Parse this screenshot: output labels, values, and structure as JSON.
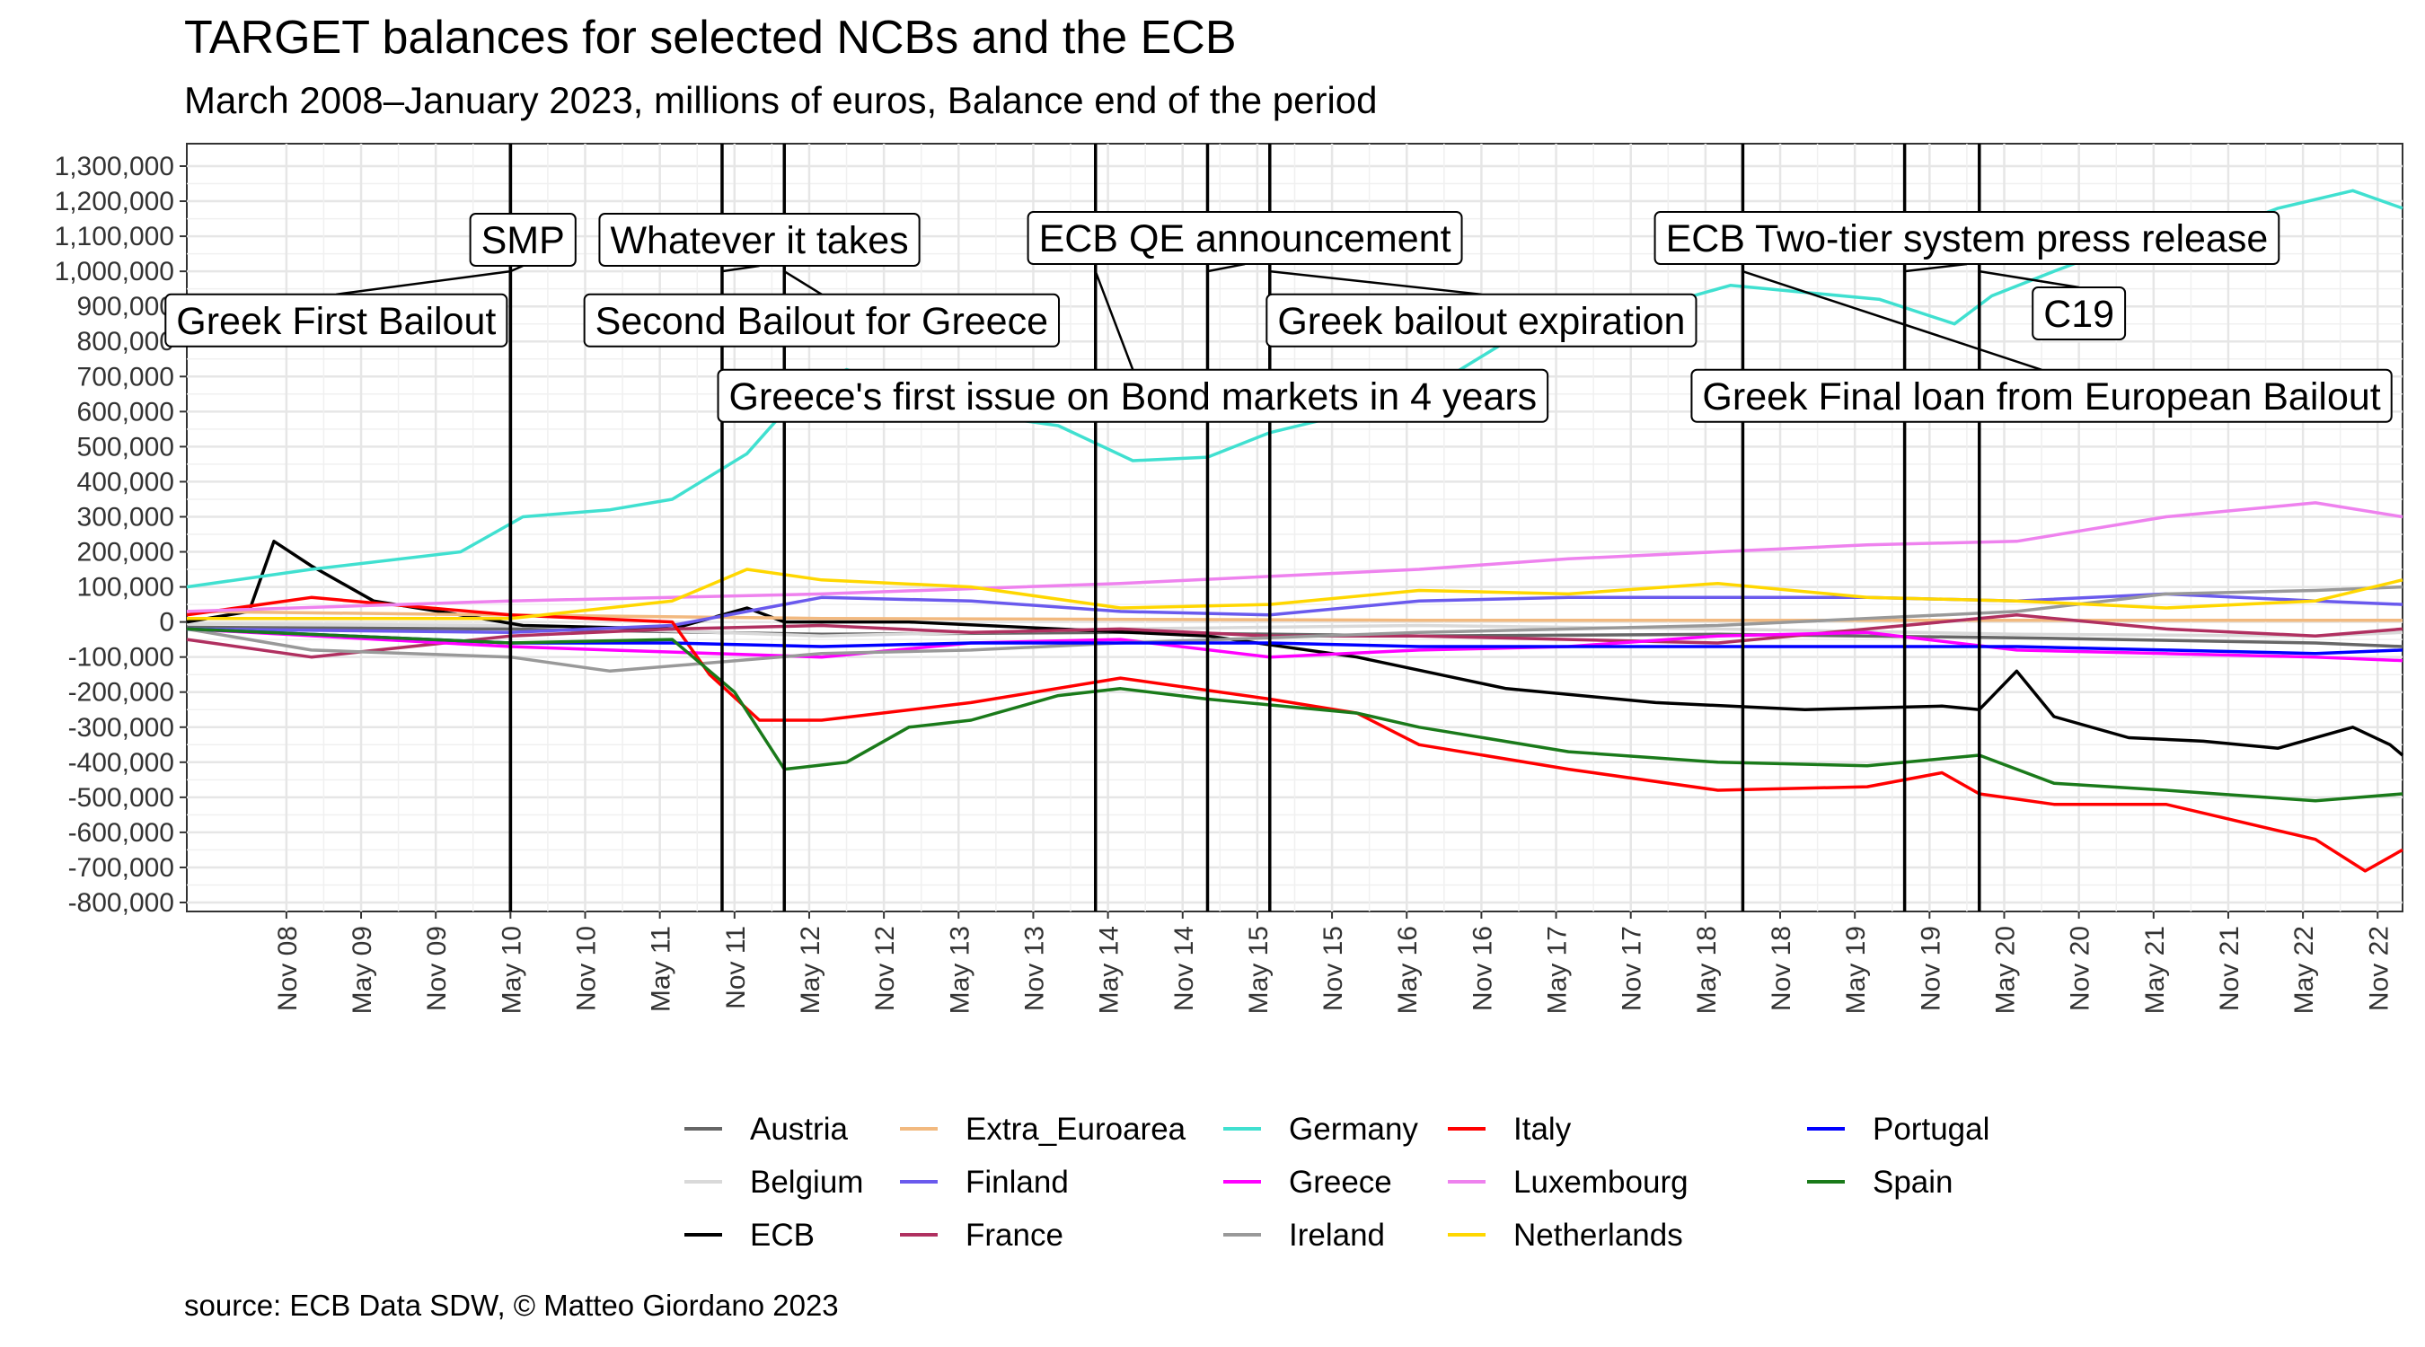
{
  "chart_data": {
    "type": "line",
    "title": "TARGET balances for selected NCBs and the ECB",
    "subtitle": "March 2008–January 2023, millions of euros, Balance end of the period",
    "caption": "source: ECB Data SDW, © Matteo Giordano 2023",
    "xlabel": "",
    "ylabel": "",
    "x_range": [
      "2008-03",
      "2023-01"
    ],
    "ylim": [
      -800000,
      1300000
    ],
    "y_ticks": [
      1300000,
      1200000,
      1100000,
      1000000,
      900000,
      800000,
      700000,
      600000,
      500000,
      400000,
      300000,
      200000,
      100000,
      0,
      -100000,
      -200000,
      -300000,
      -400000,
      -500000,
      -600000,
      -700000,
      -800000
    ],
    "y_tick_labels": [
      "1,300,000",
      "1,200,000",
      "1,100,000",
      "1,000,000",
      "900,000",
      "800,000",
      "700,000",
      "600,000",
      "500,000",
      "400,000",
      "300,000",
      "200,000",
      "100,000",
      "0",
      "-100,000",
      "-200,000",
      "-300,000",
      "-400,000",
      "-500,000",
      "-600,000",
      "-700,000",
      "-800,000"
    ],
    "x_ticks": [
      {
        "date": "2008-11",
        "label": "Nov 08"
      },
      {
        "date": "2009-05",
        "label": "May 09"
      },
      {
        "date": "2009-11",
        "label": "Nov 09"
      },
      {
        "date": "2010-05",
        "label": "May 10"
      },
      {
        "date": "2010-11",
        "label": "Nov 10"
      },
      {
        "date": "2011-05",
        "label": "May 11"
      },
      {
        "date": "2011-11",
        "label": "Nov 11"
      },
      {
        "date": "2012-05",
        "label": "May 12"
      },
      {
        "date": "2012-11",
        "label": "Nov 12"
      },
      {
        "date": "2013-05",
        "label": "May 13"
      },
      {
        "date": "2013-11",
        "label": "Nov 13"
      },
      {
        "date": "2014-05",
        "label": "May 14"
      },
      {
        "date": "2014-11",
        "label": "Nov 14"
      },
      {
        "date": "2015-05",
        "label": "May 15"
      },
      {
        "date": "2015-11",
        "label": "Nov 15"
      },
      {
        "date": "2016-05",
        "label": "May 16"
      },
      {
        "date": "2016-11",
        "label": "Nov 16"
      },
      {
        "date": "2017-05",
        "label": "May 17"
      },
      {
        "date": "2017-11",
        "label": "Nov 17"
      },
      {
        "date": "2018-05",
        "label": "May 18"
      },
      {
        "date": "2018-11",
        "label": "Nov 18"
      },
      {
        "date": "2019-05",
        "label": "May 19"
      },
      {
        "date": "2019-11",
        "label": "Nov 19"
      },
      {
        "date": "2020-05",
        "label": "May 20"
      },
      {
        "date": "2020-11",
        "label": "Nov 20"
      },
      {
        "date": "2021-05",
        "label": "May 21"
      },
      {
        "date": "2021-11",
        "label": "Nov 21"
      },
      {
        "date": "2022-05",
        "label": "May 22"
      },
      {
        "date": "2022-11",
        "label": "Nov 22"
      }
    ],
    "events": [
      {
        "date": "2010-05",
        "label": "Greek First Bailout",
        "label_date": "2009-03",
        "label_y": 860000
      },
      {
        "date": "2010-05",
        "label": "SMP",
        "label_date": "2010-06",
        "label_y": 1090000
      },
      {
        "date": "2011-10",
        "label": "Whatever it takes",
        "label_date": "2012-01",
        "label_y": 1090000
      },
      {
        "date": "2012-03",
        "label": "Second Bailout for Greece",
        "label_date": "2012-06",
        "label_y": 860000
      },
      {
        "date": "2014-04",
        "label": "Greece's first issue on Bond markets in 4 years",
        "label_date": "2014-07",
        "label_y": 645000
      },
      {
        "date": "2015-01",
        "label": "ECB QE announcement",
        "label_date": "2015-04",
        "label_y": 1095000
      },
      {
        "date": "2015-06",
        "label": "Greek bailout expiration",
        "label_date": "2016-11",
        "label_y": 860000
      },
      {
        "date": "2018-08",
        "label": "Greek Final loan from European Bailout",
        "label_date": "2020-08",
        "label_y": 645000
      },
      {
        "date": "2019-09",
        "label": "ECB Two-tier system press release",
        "label_date": "2020-02",
        "label_y": 1095000
      },
      {
        "date": "2020-03",
        "label": "C19",
        "label_date": "2020-11",
        "label_y": 880000
      }
    ],
    "series": [
      {
        "name": "Austria",
        "color": "#666666",
        "x": [
          "2008-03",
          "2010-05",
          "2012-06",
          "2014-06",
          "2016-06",
          "2018-06",
          "2020-06",
          "2022-06",
          "2023-01"
        ],
        "values": [
          -15000,
          -20000,
          -35000,
          -30000,
          -40000,
          -35000,
          -45000,
          -60000,
          -70000
        ]
      },
      {
        "name": "Belgium",
        "color": "#d9d9d9",
        "x": [
          "2008-03",
          "2010-05",
          "2012-06",
          "2014-06",
          "2016-06",
          "2018-06",
          "2020-06",
          "2022-06",
          "2023-01"
        ],
        "values": [
          -5000,
          -10000,
          -40000,
          -20000,
          -10000,
          -20000,
          -35000,
          -40000,
          -30000
        ]
      },
      {
        "name": "ECB",
        "color": "#000000",
        "x": [
          "2008-03",
          "2008-08",
          "2008-10",
          "2009-01",
          "2009-06",
          "2010-01",
          "2010-06",
          "2011-06",
          "2011-12",
          "2012-03",
          "2013-01",
          "2014-01",
          "2015-01",
          "2016-01",
          "2017-01",
          "2018-01",
          "2019-01",
          "2019-12",
          "2020-03",
          "2020-06",
          "2020-09",
          "2021-03",
          "2021-09",
          "2022-03",
          "2022-09",
          "2022-12",
          "2023-01"
        ],
        "values": [
          0,
          30000,
          230000,
          160000,
          60000,
          20000,
          -10000,
          -20000,
          40000,
          0,
          0,
          -20000,
          -40000,
          -100000,
          -190000,
          -230000,
          -250000,
          -240000,
          -250000,
          -140000,
          -270000,
          -330000,
          -340000,
          -360000,
          -300000,
          -350000,
          -380000
        ]
      },
      {
        "name": "Extra_Euroarea",
        "color": "#f2b97f",
        "x": [
          "2008-03",
          "2012-06",
          "2016-06",
          "2020-06",
          "2023-01"
        ],
        "values": [
          30000,
          10000,
          5000,
          5000,
          5000
        ]
      },
      {
        "name": "Finland",
        "color": "#6a5aed",
        "x": [
          "2008-03",
          "2010-05",
          "2011-06",
          "2012-06",
          "2013-06",
          "2014-06",
          "2015-06",
          "2016-06",
          "2017-06",
          "2018-06",
          "2019-06",
          "2020-06",
          "2021-06",
          "2022-06",
          "2023-01"
        ],
        "values": [
          -20000,
          -30000,
          -10000,
          70000,
          60000,
          30000,
          20000,
          60000,
          70000,
          70000,
          70000,
          60000,
          80000,
          60000,
          50000
        ]
      },
      {
        "name": "France",
        "color": "#b03060",
        "x": [
          "2008-03",
          "2009-01",
          "2010-05",
          "2011-06",
          "2012-06",
          "2013-06",
          "2014-06",
          "2015-06",
          "2016-06",
          "2017-06",
          "2018-06",
          "2019-06",
          "2020-06",
          "2021-06",
          "2022-06",
          "2023-01"
        ],
        "values": [
          -50000,
          -100000,
          -40000,
          -20000,
          -10000,
          -30000,
          -20000,
          -40000,
          -40000,
          -50000,
          -60000,
          -20000,
          20000,
          -20000,
          -40000,
          -20000
        ]
      },
      {
        "name": "Germany",
        "color": "#40e0d0",
        "x": [
          "2008-03",
          "2009-01",
          "2010-01",
          "2010-06",
          "2011-01",
          "2011-06",
          "2011-12",
          "2012-04",
          "2012-08",
          "2013-01",
          "2013-07",
          "2014-01",
          "2014-07",
          "2015-01",
          "2015-06",
          "2016-01",
          "2016-07",
          "2017-01",
          "2017-07",
          "2018-01",
          "2018-07",
          "2019-01",
          "2019-07",
          "2020-01",
          "2020-04",
          "2020-09",
          "2021-03",
          "2021-09",
          "2022-03",
          "2022-09",
          "2023-01"
        ],
        "values": [
          100000,
          150000,
          200000,
          300000,
          320000,
          350000,
          480000,
          640000,
          720000,
          660000,
          590000,
          560000,
          460000,
          470000,
          540000,
          600000,
          670000,
          800000,
          860000,
          900000,
          960000,
          940000,
          920000,
          850000,
          930000,
          1000000,
          1080000,
          1100000,
          1180000,
          1230000,
          1180000
        ]
      },
      {
        "name": "Greece",
        "color": "#ff00ff",
        "x": [
          "2008-03",
          "2010-05",
          "2011-01",
          "2012-06",
          "2013-06",
          "2014-06",
          "2015-06",
          "2016-06",
          "2017-06",
          "2018-06",
          "2019-06",
          "2020-06",
          "2021-06",
          "2022-06",
          "2023-01"
        ],
        "values": [
          -20000,
          -70000,
          -80000,
          -100000,
          -60000,
          -50000,
          -100000,
          -80000,
          -70000,
          -40000,
          -30000,
          -80000,
          -90000,
          -100000,
          -110000
        ]
      },
      {
        "name": "Ireland",
        "color": "#999999",
        "x": [
          "2008-03",
          "2009-01",
          "2010-05",
          "2011-01",
          "2012-06",
          "2013-06",
          "2014-06",
          "2016-06",
          "2018-06",
          "2020-06",
          "2021-06",
          "2022-06",
          "2023-01"
        ],
        "values": [
          -20000,
          -80000,
          -100000,
          -140000,
          -90000,
          -80000,
          -60000,
          -30000,
          -10000,
          30000,
          80000,
          90000,
          100000
        ]
      },
      {
        "name": "Italy",
        "color": "#ff0000",
        "x": [
          "2008-03",
          "2009-01",
          "2010-05",
          "2011-06",
          "2011-09",
          "2012-01",
          "2012-06",
          "2013-06",
          "2014-06",
          "2015-06",
          "2016-01",
          "2016-06",
          "2017-06",
          "2018-06",
          "2019-06",
          "2019-12",
          "2020-03",
          "2020-09",
          "2021-06",
          "2022-06",
          "2022-10",
          "2023-01"
        ],
        "values": [
          20000,
          70000,
          20000,
          0,
          -150000,
          -280000,
          -280000,
          -230000,
          -160000,
          -220000,
          -260000,
          -350000,
          -420000,
          -480000,
          -470000,
          -430000,
          -490000,
          -520000,
          -520000,
          -620000,
          -710000,
          -650000
        ]
      },
      {
        "name": "Luxembourg",
        "color": "#ee82ee",
        "x": [
          "2008-03",
          "2010-05",
          "2012-06",
          "2014-06",
          "2016-06",
          "2017-06",
          "2018-06",
          "2019-06",
          "2020-06",
          "2021-06",
          "2022-06",
          "2023-01"
        ],
        "values": [
          30000,
          60000,
          80000,
          110000,
          150000,
          180000,
          200000,
          220000,
          230000,
          300000,
          340000,
          300000
        ]
      },
      {
        "name": "Netherlands",
        "color": "#ffd700",
        "x": [
          "2008-03",
          "2010-05",
          "2011-06",
          "2011-12",
          "2012-06",
          "2013-06",
          "2014-06",
          "2015-06",
          "2016-06",
          "2017-06",
          "2018-06",
          "2019-06",
          "2020-06",
          "2021-06",
          "2022-06",
          "2023-01"
        ],
        "values": [
          10000,
          10000,
          60000,
          150000,
          120000,
          100000,
          40000,
          50000,
          90000,
          80000,
          110000,
          70000,
          60000,
          40000,
          60000,
          120000
        ]
      },
      {
        "name": "Portugal",
        "color": "#0000ff",
        "x": [
          "2008-03",
          "2010-05",
          "2011-06",
          "2012-06",
          "2013-06",
          "2014-06",
          "2015-06",
          "2016-06",
          "2017-06",
          "2018-06",
          "2019-06",
          "2020-06",
          "2021-06",
          "2022-06",
          "2023-01"
        ],
        "values": [
          -20000,
          -60000,
          -60000,
          -70000,
          -60000,
          -60000,
          -60000,
          -70000,
          -70000,
          -70000,
          -70000,
          -70000,
          -80000,
          -90000,
          -80000
        ]
      },
      {
        "name": "Spain",
        "color": "#1a7a1a",
        "x": [
          "2008-03",
          "2010-05",
          "2011-06",
          "2011-11",
          "2012-03",
          "2012-08",
          "2013-01",
          "2013-06",
          "2014-01",
          "2014-06",
          "2015-01",
          "2016-01",
          "2016-06",
          "2017-06",
          "2018-06",
          "2019-06",
          "2019-12",
          "2020-03",
          "2020-09",
          "2021-06",
          "2022-06",
          "2023-01"
        ],
        "values": [
          -20000,
          -60000,
          -50000,
          -200000,
          -420000,
          -400000,
          -300000,
          -280000,
          -210000,
          -190000,
          -220000,
          -260000,
          -300000,
          -370000,
          -400000,
          -410000,
          -390000,
          -380000,
          -460000,
          -480000,
          -510000,
          -490000
        ]
      }
    ]
  }
}
